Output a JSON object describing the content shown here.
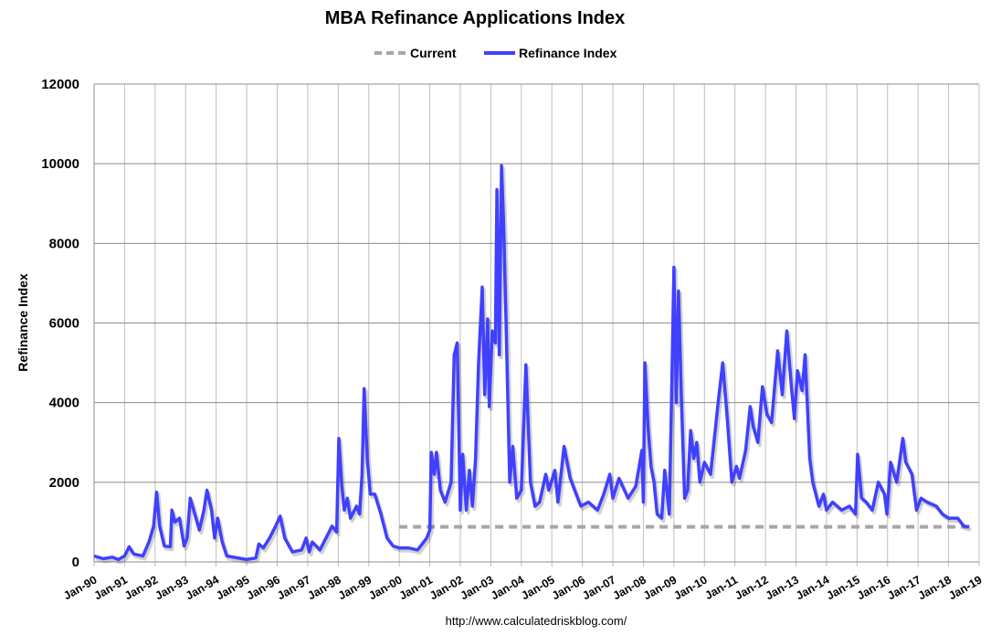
{
  "chart_data": {
    "type": "line",
    "title": "MBA Refinance Applications Index",
    "xlabel": "",
    "ylabel": "Refinance Index",
    "ylim": [
      0,
      12000
    ],
    "yticks": [
      0,
      2000,
      4000,
      6000,
      8000,
      10000,
      12000
    ],
    "xlim": [
      1990,
      2019
    ],
    "xtick_labels": [
      "Jan-90",
      "Jan-91",
      "Jan-92",
      "Jan-93",
      "Jan-94",
      "Jan-95",
      "Jan-96",
      "Jan-97",
      "Jan-98",
      "Jan-99",
      "Jan-00",
      "Jan-01",
      "Jan-02",
      "Jan-03",
      "Jan-04",
      "Jan-05",
      "Jan-06",
      "Jan-07",
      "Jan-08",
      "Jan-09",
      "Jan-10",
      "Jan-11",
      "Jan-12",
      "Jan-13",
      "Jan-14",
      "Jan-15",
      "Jan-16",
      "Jan-17",
      "Jan-18",
      "Jan-19"
    ],
    "grid": true,
    "legend_position": "top-center",
    "source": "http://www.calculatedriskblog.com/",
    "series": [
      {
        "name": "Current",
        "color": "#a6a6a6",
        "style": "dashed",
        "x": [
          2000.0,
          2018.68
        ],
        "values": [
          880,
          880
        ]
      },
      {
        "name": "Refinance Index",
        "color": "#4040ff",
        "style": "solid",
        "x": [
          1990.0,
          1990.3,
          1990.6,
          1990.8,
          1991.0,
          1991.15,
          1991.3,
          1991.6,
          1991.8,
          1991.95,
          1992.05,
          1992.15,
          1992.3,
          1992.5,
          1992.55,
          1992.65,
          1992.8,
          1992.95,
          1993.05,
          1993.15,
          1993.3,
          1993.45,
          1993.6,
          1993.7,
          1993.85,
          1993.95,
          1994.05,
          1994.2,
          1994.35,
          1994.7,
          1995.0,
          1995.3,
          1995.4,
          1995.55,
          1995.75,
          1995.95,
          1996.1,
          1996.25,
          1996.5,
          1996.8,
          1996.95,
          1997.05,
          1997.15,
          1997.4,
          1997.6,
          1997.8,
          1997.95,
          1998.02,
          1998.12,
          1998.2,
          1998.3,
          1998.4,
          1998.6,
          1998.7,
          1998.78,
          1998.85,
          1998.95,
          1999.05,
          1999.2,
          1999.4,
          1999.6,
          1999.8,
          2000.0,
          2000.3,
          2000.6,
          2000.9,
          2001.0,
          2001.05,
          2001.15,
          2001.22,
          2001.35,
          2001.5,
          2001.7,
          2001.8,
          2001.9,
          2002.0,
          2002.08,
          2002.2,
          2002.3,
          2002.4,
          2002.5,
          2002.6,
          2002.72,
          2002.8,
          2002.9,
          2002.95,
          2003.05,
          2003.15,
          2003.2,
          2003.28,
          2003.35,
          2003.42,
          2003.5,
          2003.62,
          2003.72,
          2003.85,
          2004.0,
          2004.15,
          2004.3,
          2004.45,
          2004.6,
          2004.8,
          2004.9,
          2005.1,
          2005.2,
          2005.4,
          2005.6,
          2005.8,
          2005.95,
          2006.2,
          2006.5,
          2006.7,
          2006.9,
          2007.0,
          2007.2,
          2007.5,
          2007.75,
          2007.95,
          2008.0,
          2008.05,
          2008.15,
          2008.25,
          2008.35,
          2008.45,
          2008.6,
          2008.7,
          2008.85,
          2008.92,
          2009.0,
          2009.08,
          2009.15,
          2009.25,
          2009.35,
          2009.45,
          2009.55,
          2009.65,
          2009.75,
          2009.85,
          2010.0,
          2010.2,
          2010.45,
          2010.6,
          2010.75,
          2010.9,
          2011.05,
          2011.15,
          2011.35,
          2011.5,
          2011.6,
          2011.75,
          2011.9,
          2012.05,
          2012.2,
          2012.4,
          2012.55,
          2012.7,
          2012.85,
          2012.95,
          2013.05,
          2013.2,
          2013.3,
          2013.45,
          2013.55,
          2013.75,
          2013.9,
          2014.0,
          2014.2,
          2014.5,
          2014.75,
          2014.95,
          2015.02,
          2015.15,
          2015.3,
          2015.5,
          2015.7,
          2015.9,
          2015.98,
          2016.1,
          2016.3,
          2016.5,
          2016.6,
          2016.8,
          2016.95,
          2017.1,
          2017.3,
          2017.6,
          2017.8,
          2018.0,
          2018.3,
          2018.5,
          2018.68
        ],
        "values": [
          150,
          80,
          120,
          60,
          150,
          380,
          200,
          150,
          500,
          900,
          1750,
          900,
          400,
          380,
          1300,
          1000,
          1100,
          400,
          600,
          1600,
          1200,
          800,
          1300,
          1800,
          1300,
          600,
          1100,
          500,
          150,
          100,
          60,
          100,
          450,
          350,
          600,
          900,
          1150,
          600,
          250,
          300,
          600,
          250,
          500,
          300,
          600,
          900,
          750,
          3100,
          1900,
          1300,
          1600,
          1100,
          1400,
          1200,
          2200,
          4350,
          2600,
          1700,
          1700,
          1200,
          600,
          400,
          350,
          350,
          300,
          600,
          800,
          2750,
          2200,
          2750,
          1800,
          1500,
          2000,
          5200,
          5500,
          1300,
          2700,
          1300,
          2300,
          1400,
          2600,
          5000,
          6900,
          4200,
          6100,
          3900,
          5800,
          5500,
          9350,
          5200,
          9950,
          8500,
          6000,
          2000,
          2900,
          1600,
          1800,
          4950,
          2000,
          1400,
          1500,
          2200,
          1800,
          2300,
          1500,
          2900,
          2100,
          1700,
          1400,
          1500,
          1300,
          1700,
          2200,
          1600,
          2100,
          1600,
          1900,
          2800,
          1500,
          5000,
          3400,
          2400,
          2000,
          1200,
          1100,
          2300,
          1200,
          4000,
          7400,
          4000,
          6800,
          4000,
          1600,
          1800,
          3300,
          2600,
          3000,
          2000,
          2500,
          2200,
          4000,
          5000,
          3600,
          2000,
          2400,
          2100,
          2800,
          3900,
          3400,
          3000,
          4400,
          3700,
          3500,
          5300,
          4200,
          5800,
          4400,
          3600,
          4800,
          4300,
          5200,
          2600,
          2000,
          1400,
          1700,
          1300,
          1500,
          1300,
          1400,
          1200,
          2700,
          1600,
          1500,
          1300,
          2000,
          1700,
          1200,
          2500,
          2000,
          3100,
          2500,
          2200,
          1300,
          1600,
          1500,
          1400,
          1200,
          1100,
          1100,
          900,
          880
        ]
      }
    ]
  }
}
